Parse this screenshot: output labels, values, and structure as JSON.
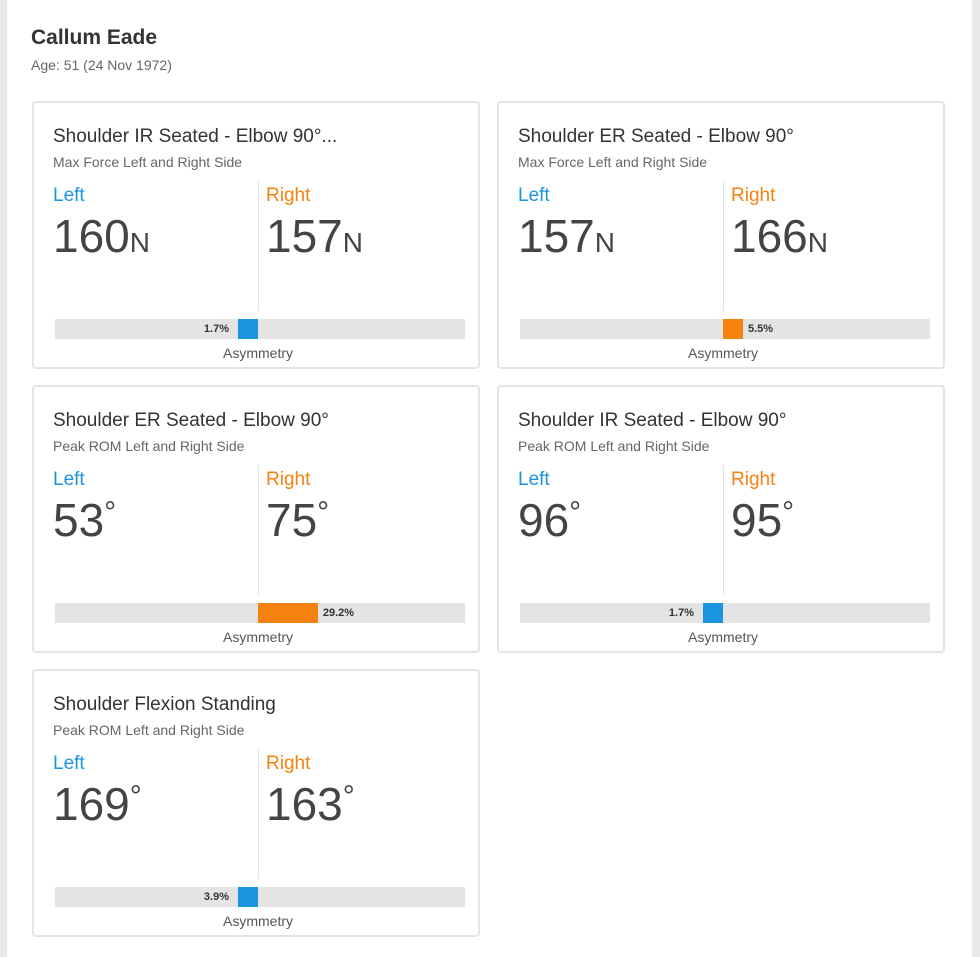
{
  "header": {
    "name": "Callum Eade",
    "age": "Age: 51 (24 Nov 1972)"
  },
  "colors": {
    "left": "#1a95dd",
    "right": "#f5820f"
  },
  "asymmetry_caption": "Asymmetry",
  "side_labels": {
    "left": "Left",
    "right": "Right"
  },
  "cards": [
    {
      "title": "Shoulder IR Seated - Elbow 90°...",
      "subtitle": "Max Force Left and Right Side",
      "left": 160,
      "right": 157,
      "unit": "N",
      "asymmetry": {
        "value": 1.7,
        "label": "1.7%"
      },
      "stronger_side": "left"
    },
    {
      "title": "Shoulder ER Seated - Elbow 90°",
      "subtitle": "Max Force Left and Right Side",
      "left": 157,
      "right": 166,
      "unit": "N",
      "asymmetry": {
        "value": 5.5,
        "label": "5.5%"
      },
      "stronger_side": "right"
    },
    {
      "title": "Shoulder ER Seated - Elbow 90°",
      "subtitle": "Peak ROM Left and Right Side",
      "left": 53,
      "right": 75,
      "unit": "°",
      "asymmetry": {
        "value": 29.2,
        "label": "29.2%"
      },
      "stronger_side": "right"
    },
    {
      "title": "Shoulder IR Seated - Elbow 90°",
      "subtitle": "Peak ROM Left and Right Side",
      "left": 96,
      "right": 95,
      "unit": "°",
      "asymmetry": {
        "value": 1.7,
        "label": "1.7%"
      },
      "stronger_side": "left"
    },
    {
      "title": "Shoulder Flexion Standing",
      "subtitle": "Peak ROM Left and Right Side",
      "left": 169,
      "right": 163,
      "unit": "°",
      "asymmetry": {
        "value": 3.9,
        "label": "3.9%"
      },
      "stronger_side": "left"
    }
  ]
}
